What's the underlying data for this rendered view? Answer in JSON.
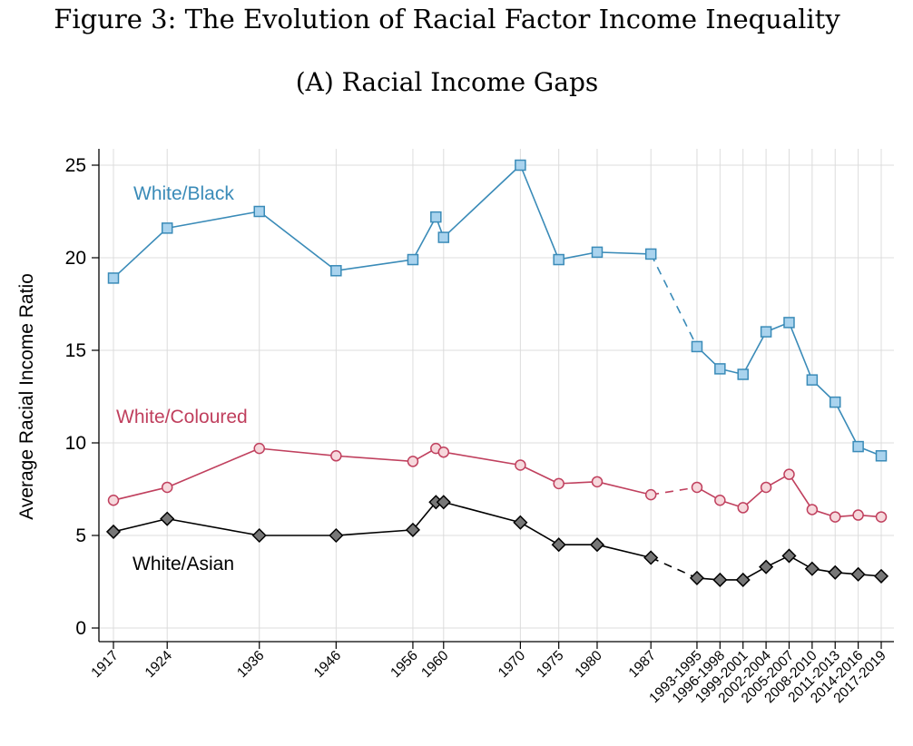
{
  "figure_title": "Figure 3: The Evolution of Racial Factor Income Inequality",
  "panel_title": "(A) Racial Income Gaps",
  "chart_data": {
    "type": "line",
    "title": "(A) Racial Income Gaps",
    "xlabel": "",
    "ylabel": "Average Racial Income Ratio",
    "ylim": [
      0,
      25
    ],
    "yticks": [
      0,
      5,
      10,
      15,
      20,
      25
    ],
    "grid": true,
    "categories": [
      "1917",
      "1924",
      "1936",
      "1946",
      "1956",
      "1959",
      "1960",
      "1970",
      "1975",
      "1980",
      "1987",
      "1993-1995",
      "1996-1998",
      "1999-2001",
      "2002-2004",
      "2005-2007",
      "2008-2010",
      "2011-2013",
      "2014-2016",
      "2017-2019"
    ],
    "x": [
      1917,
      1924,
      1936,
      1946,
      1956,
      1959,
      1960,
      1970,
      1975,
      1980,
      1987,
      1993,
      1996,
      1999,
      2002,
      2005,
      2008,
      2011,
      2014,
      2017
    ],
    "xtick_labels": [
      {
        "x": 1917,
        "label": "1917"
      },
      {
        "x": 1924,
        "label": "1924"
      },
      {
        "x": 1936,
        "label": "1936"
      },
      {
        "x": 1946,
        "label": "1946"
      },
      {
        "x": 1956,
        "label": "1956"
      },
      {
        "x": 1960,
        "label": "1960"
      },
      {
        "x": 1970,
        "label": "1970"
      },
      {
        "x": 1975,
        "label": "1975"
      },
      {
        "x": 1980,
        "label": "1980"
      },
      {
        "x": 1987,
        "label": "1987"
      },
      {
        "x": 1993,
        "label": "1993-1995"
      },
      {
        "x": 1996,
        "label": "1996-1998"
      },
      {
        "x": 1999,
        "label": "1999-2001"
      },
      {
        "x": 2002,
        "label": "2002-2004"
      },
      {
        "x": 2005,
        "label": "2005-2007"
      },
      {
        "x": 2008,
        "label": "2008-2010"
      },
      {
        "x": 2011,
        "label": "2011-2013"
      },
      {
        "x": 2014,
        "label": "2014-2016"
      },
      {
        "x": 2017,
        "label": "2017-2019"
      }
    ],
    "dashed_gap": {
      "from": 1987,
      "to": 1993
    },
    "series": [
      {
        "name": "White/Black",
        "color": "#3a8bb8",
        "fill": "#a9d3ee",
        "marker": "square",
        "values": [
          18.9,
          21.6,
          22.5,
          19.3,
          19.9,
          22.2,
          21.1,
          25.0,
          19.9,
          20.3,
          20.2,
          15.2,
          14.0,
          13.7,
          16.0,
          16.5,
          13.4,
          12.2,
          9.8,
          9.3
        ]
      },
      {
        "name": "White/Coloured",
        "color": "#c0405e",
        "fill": "#f6d8dc",
        "marker": "circle",
        "values": [
          6.9,
          7.6,
          9.7,
          9.3,
          9.0,
          9.7,
          9.5,
          8.8,
          7.8,
          7.9,
          7.2,
          7.6,
          6.9,
          6.5,
          7.6,
          8.3,
          6.4,
          6.0,
          6.1,
          6.0
        ]
      },
      {
        "name": "White/Asian",
        "color": "#000000",
        "fill": "#777777",
        "marker": "diamond",
        "values": [
          5.2,
          5.9,
          5.0,
          5.0,
          5.3,
          6.8,
          6.8,
          5.7,
          4.5,
          4.5,
          3.8,
          2.7,
          2.6,
          2.6,
          3.3,
          3.9,
          3.2,
          3.0,
          2.9,
          2.8
        ]
      }
    ]
  }
}
